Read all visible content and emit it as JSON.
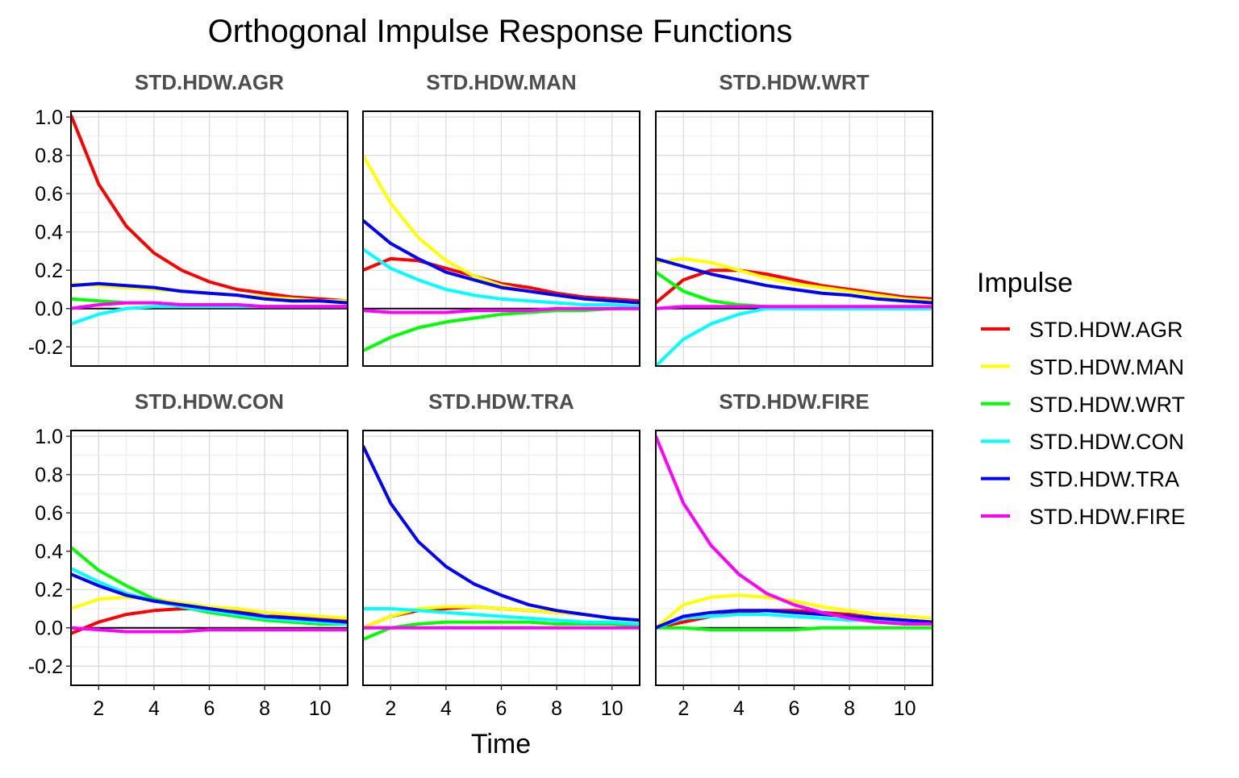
{
  "chart_data": {
    "type": "line",
    "title": "Orthogonal Impulse Response Functions",
    "xlabel": "Time",
    "ylabel": "",
    "xlim": [
      1,
      11
    ],
    "ylim": [
      -0.3,
      1.03
    ],
    "x_ticks": [
      "2",
      "4",
      "6",
      "8",
      "10"
    ],
    "y_ticks": [
      "1.0",
      "0.8",
      "0.6",
      "0.4",
      "0.2",
      "0.0",
      "-0.2"
    ],
    "grid": true,
    "legend_title": "Impulse",
    "legend_position": "right",
    "x": [
      1,
      2,
      3,
      4,
      5,
      6,
      7,
      8,
      9,
      10,
      11
    ],
    "series_meta": [
      {
        "name": "STD.HDW.AGR",
        "color": "#FF0000"
      },
      {
        "name": "STD.HDW.MAN",
        "color": "#FFFF00"
      },
      {
        "name": "STD.HDW.WRT",
        "color": "#00FF00"
      },
      {
        "name": "STD.HDW.CON",
        "color": "#00FFFF"
      },
      {
        "name": "STD.HDW.TRA",
        "color": "#0000FF"
      },
      {
        "name": "STD.HDW.FIRE",
        "color": "#FF00FF"
      }
    ],
    "panels": [
      {
        "title": "STD.HDW.AGR",
        "series": [
          {
            "name": "STD.HDW.AGR",
            "values": [
              1.01,
              0.65,
              0.43,
              0.29,
              0.2,
              0.14,
              0.1,
              0.08,
              0.06,
              0.05,
              0.04
            ]
          },
          {
            "name": "STD.HDW.MAN",
            "values": [
              0.13,
              0.12,
              0.11,
              0.1,
              0.09,
              0.08,
              0.07,
              0.06,
              0.05,
              0.04,
              0.04
            ]
          },
          {
            "name": "STD.HDW.WRT",
            "values": [
              0.05,
              0.04,
              0.03,
              0.03,
              0.02,
              0.02,
              0.02,
              0.01,
              0.01,
              0.01,
              0.01
            ]
          },
          {
            "name": "STD.HDW.CON",
            "values": [
              -0.08,
              -0.03,
              0.0,
              0.01,
              0.01,
              0.01,
              0.01,
              0.01,
              0.01,
              0.01,
              0.01
            ]
          },
          {
            "name": "STD.HDW.TRA",
            "values": [
              0.12,
              0.13,
              0.12,
              0.11,
              0.09,
              0.08,
              0.07,
              0.05,
              0.04,
              0.04,
              0.03
            ]
          },
          {
            "name": "STD.HDW.FIRE",
            "values": [
              0.0,
              0.02,
              0.03,
              0.03,
              0.02,
              0.02,
              0.02,
              0.01,
              0.01,
              0.01,
              0.01
            ]
          }
        ]
      },
      {
        "title": "STD.HDW.MAN",
        "series": [
          {
            "name": "STD.HDW.AGR",
            "values": [
              0.2,
              0.26,
              0.25,
              0.21,
              0.17,
              0.13,
              0.11,
              0.08,
              0.06,
              0.05,
              0.04
            ]
          },
          {
            "name": "STD.HDW.MAN",
            "values": [
              0.8,
              0.55,
              0.37,
              0.25,
              0.17,
              0.12,
              0.09,
              0.07,
              0.05,
              0.04,
              0.03
            ]
          },
          {
            "name": "STD.HDW.WRT",
            "values": [
              -0.22,
              -0.15,
              -0.1,
              -0.07,
              -0.05,
              -0.03,
              -0.02,
              -0.01,
              -0.01,
              0.0,
              0.0
            ]
          },
          {
            "name": "STD.HDW.CON",
            "values": [
              0.31,
              0.21,
              0.15,
              0.1,
              0.07,
              0.05,
              0.04,
              0.03,
              0.02,
              0.02,
              0.01
            ]
          },
          {
            "name": "STD.HDW.TRA",
            "values": [
              0.46,
              0.34,
              0.26,
              0.19,
              0.15,
              0.11,
              0.09,
              0.07,
              0.05,
              0.04,
              0.03
            ]
          },
          {
            "name": "STD.HDW.FIRE",
            "values": [
              -0.01,
              -0.02,
              -0.02,
              -0.02,
              -0.01,
              -0.01,
              -0.01,
              0.0,
              0.0,
              0.0,
              0.0
            ]
          }
        ]
      },
      {
        "title": "STD.HDW.WRT",
        "series": [
          {
            "name": "STD.HDW.AGR",
            "values": [
              0.03,
              0.15,
              0.2,
              0.2,
              0.18,
              0.15,
              0.12,
              0.1,
              0.08,
              0.06,
              0.05
            ]
          },
          {
            "name": "STD.HDW.MAN",
            "values": [
              0.24,
              0.26,
              0.24,
              0.2,
              0.16,
              0.13,
              0.11,
              0.09,
              0.07,
              0.05,
              0.04
            ]
          },
          {
            "name": "STD.HDW.WRT",
            "values": [
              0.19,
              0.09,
              0.04,
              0.02,
              0.01,
              0.0,
              0.0,
              0.0,
              0.0,
              0.0,
              0.0
            ]
          },
          {
            "name": "STD.HDW.CON",
            "values": [
              -0.3,
              -0.16,
              -0.08,
              -0.03,
              0.0,
              0.0,
              0.0,
              0.0,
              0.0,
              0.0,
              0.0
            ]
          },
          {
            "name": "STD.HDW.TRA",
            "values": [
              0.26,
              0.22,
              0.18,
              0.15,
              0.12,
              0.1,
              0.08,
              0.07,
              0.05,
              0.04,
              0.03
            ]
          },
          {
            "name": "STD.HDW.FIRE",
            "values": [
              0.0,
              0.01,
              0.01,
              0.01,
              0.01,
              0.01,
              0.01,
              0.01,
              0.01,
              0.01,
              0.01
            ]
          }
        ]
      },
      {
        "title": "STD.HDW.CON",
        "series": [
          {
            "name": "STD.HDW.AGR",
            "values": [
              -0.03,
              0.03,
              0.07,
              0.09,
              0.1,
              0.1,
              0.09,
              0.08,
              0.06,
              0.05,
              0.04
            ]
          },
          {
            "name": "STD.HDW.MAN",
            "values": [
              0.1,
              0.15,
              0.16,
              0.15,
              0.13,
              0.11,
              0.1,
              0.08,
              0.07,
              0.06,
              0.05
            ]
          },
          {
            "name": "STD.HDW.WRT",
            "values": [
              0.42,
              0.3,
              0.22,
              0.15,
              0.11,
              0.08,
              0.06,
              0.04,
              0.03,
              0.02,
              0.02
            ]
          },
          {
            "name": "STD.HDW.CON",
            "values": [
              0.31,
              0.24,
              0.18,
              0.14,
              0.11,
              0.09,
              0.07,
              0.05,
              0.04,
              0.03,
              0.02
            ]
          },
          {
            "name": "STD.HDW.TRA",
            "values": [
              0.28,
              0.22,
              0.17,
              0.14,
              0.12,
              0.1,
              0.08,
              0.06,
              0.05,
              0.04,
              0.03
            ]
          },
          {
            "name": "STD.HDW.FIRE",
            "values": [
              0.0,
              -0.01,
              -0.02,
              -0.02,
              -0.02,
              -0.01,
              -0.01,
              -0.01,
              -0.01,
              -0.01,
              -0.01
            ]
          }
        ]
      },
      {
        "title": "STD.HDW.TRA",
        "series": [
          {
            "name": "STD.HDW.AGR",
            "values": [
              0.0,
              0.06,
              0.09,
              0.1,
              0.11,
              0.1,
              0.09,
              0.08,
              0.07,
              0.05,
              0.04
            ]
          },
          {
            "name": "STD.HDW.MAN",
            "values": [
              0.0,
              0.06,
              0.1,
              0.11,
              0.11,
              0.1,
              0.09,
              0.08,
              0.07,
              0.05,
              0.04
            ]
          },
          {
            "name": "STD.HDW.WRT",
            "values": [
              -0.06,
              0.0,
              0.02,
              0.03,
              0.03,
              0.03,
              0.03,
              0.02,
              0.02,
              0.02,
              0.01
            ]
          },
          {
            "name": "STD.HDW.CON",
            "values": [
              0.1,
              0.1,
              0.09,
              0.08,
              0.07,
              0.06,
              0.05,
              0.04,
              0.03,
              0.03,
              0.02
            ]
          },
          {
            "name": "STD.HDW.TRA",
            "values": [
              0.95,
              0.65,
              0.45,
              0.32,
              0.23,
              0.17,
              0.12,
              0.09,
              0.07,
              0.05,
              0.04
            ]
          },
          {
            "name": "STD.HDW.FIRE",
            "values": [
              0.0,
              0.0,
              0.0,
              0.0,
              0.0,
              0.0,
              0.0,
              0.0,
              0.0,
              0.0,
              0.0
            ]
          }
        ]
      },
      {
        "title": "STD.HDW.FIRE",
        "series": [
          {
            "name": "STD.HDW.AGR",
            "values": [
              0.0,
              0.03,
              0.06,
              0.08,
              0.09,
              0.09,
              0.08,
              0.07,
              0.05,
              0.04,
              0.03
            ]
          },
          {
            "name": "STD.HDW.MAN",
            "values": [
              0.0,
              0.12,
              0.16,
              0.17,
              0.16,
              0.14,
              0.11,
              0.09,
              0.07,
              0.06,
              0.05
            ]
          },
          {
            "name": "STD.HDW.WRT",
            "values": [
              0.0,
              0.0,
              -0.01,
              -0.01,
              -0.01,
              -0.01,
              0.0,
              0.0,
              0.0,
              0.0,
              0.0
            ]
          },
          {
            "name": "STD.HDW.CON",
            "values": [
              0.0,
              0.05,
              0.06,
              0.07,
              0.07,
              0.06,
              0.05,
              0.04,
              0.04,
              0.03,
              0.02
            ]
          },
          {
            "name": "STD.HDW.TRA",
            "values": [
              0.0,
              0.06,
              0.08,
              0.09,
              0.09,
              0.08,
              0.07,
              0.06,
              0.05,
              0.04,
              0.03
            ]
          },
          {
            "name": "STD.HDW.FIRE",
            "values": [
              1.0,
              0.65,
              0.43,
              0.28,
              0.18,
              0.12,
              0.08,
              0.05,
              0.03,
              0.02,
              0.02
            ]
          }
        ]
      }
    ]
  }
}
